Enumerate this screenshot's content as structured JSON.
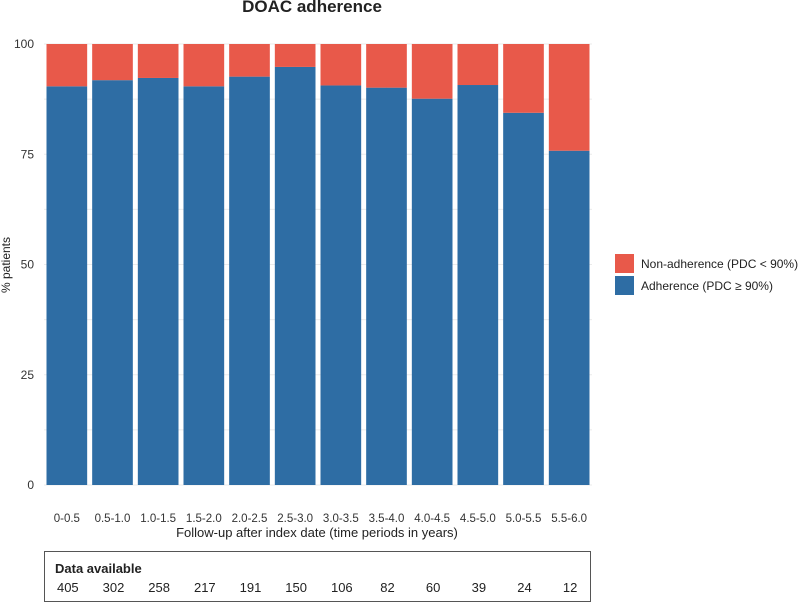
{
  "chart_data": {
    "type": "bar",
    "stacked": true,
    "title": "DOAC adherence",
    "xlabel": "Follow-up after index date (time periods in years)",
    "ylabel": "% patients",
    "ylim": [
      0,
      100
    ],
    "yticks": [
      0,
      25,
      50,
      75,
      100
    ],
    "categories": [
      "0-0.5",
      "0.5-1.0",
      "1.0-1.5",
      "1.5-2.0",
      "2.0-2.5",
      "2.5-3.0",
      "3.0-3.5",
      "3.5-4.0",
      "4.0-4.5",
      "4.5-5.0",
      "5.0-5.5",
      "5.5-6.0"
    ],
    "series": [
      {
        "name": "Adherence (PDC ≥ 90%)",
        "color": "#2e6da4",
        "values": [
          90.4,
          91.8,
          92.3,
          90.4,
          92.6,
          94.8,
          90.6,
          90.1,
          87.6,
          90.7,
          84.4,
          75.8
        ]
      },
      {
        "name": "Non-adherence (PDC < 90%)",
        "color": "#e8594a",
        "values": [
          9.6,
          8.2,
          7.7,
          9.6,
          7.4,
          5.2,
          9.4,
          9.9,
          12.4,
          9.3,
          15.6,
          24.2
        ]
      }
    ],
    "legend": {
      "position": "right",
      "items": [
        {
          "label": "Non-adherence (PDC < 90%)",
          "color": "#e8594a"
        },
        {
          "label": "Adherence (PDC ≥ 90%)",
          "color": "#2e6da4"
        }
      ]
    },
    "grid": true
  },
  "data_available": {
    "title": "Data available",
    "counts": [
      "405",
      "302",
      "258",
      "217",
      "191",
      "150",
      "106",
      "82",
      "60",
      "39",
      "24",
      "12"
    ]
  }
}
